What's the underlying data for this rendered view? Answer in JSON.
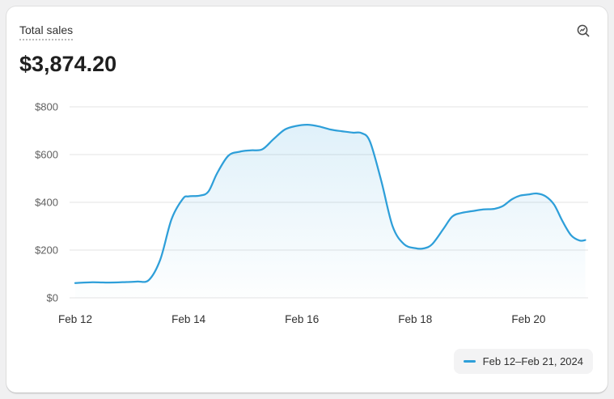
{
  "card": {
    "title": "Total sales",
    "value": "$3,874.20",
    "action_icon": "view-report-magnifier-icon"
  },
  "chart_data": {
    "type": "line",
    "title": "Total sales",
    "x_unit": "day of February 2024",
    "xlim": [
      11.9,
      21.05
    ],
    "ylim": [
      0,
      800
    ],
    "grid": true,
    "area_fill": true,
    "legend_position": "bottom-right",
    "x_ticks": [
      {
        "value": 12,
        "label": "Feb 12"
      },
      {
        "value": 14,
        "label": "Feb 14"
      },
      {
        "value": 16,
        "label": "Feb 16"
      },
      {
        "value": 18,
        "label": "Feb 18"
      },
      {
        "value": 20,
        "label": "Feb 20"
      }
    ],
    "y_ticks": [
      {
        "value": 0,
        "label": "$0"
      },
      {
        "value": 200,
        "label": "$200"
      },
      {
        "value": 400,
        "label": "$400"
      },
      {
        "value": 600,
        "label": "$600"
      },
      {
        "value": 800,
        "label": "$800"
      }
    ],
    "x": [
      12.0,
      12.3,
      12.6,
      12.9,
      13.1,
      13.3,
      13.5,
      13.7,
      13.9,
      14.0,
      14.2,
      14.35,
      14.5,
      14.7,
      14.9,
      15.1,
      15.3,
      15.5,
      15.7,
      15.9,
      16.1,
      16.3,
      16.5,
      16.7,
      16.9,
      17.05,
      17.2,
      17.4,
      17.6,
      17.8,
      18.0,
      18.15,
      18.3,
      18.5,
      18.65,
      18.8,
      19.0,
      19.2,
      19.4,
      19.55,
      19.7,
      19.85,
      20.0,
      20.15,
      20.3,
      20.45,
      20.6,
      20.75,
      20.9,
      21.0
    ],
    "series": [
      {
        "name": "Feb 12–Feb 21, 2024",
        "color": "#2e9fd9",
        "values": [
          62,
          65,
          64,
          66,
          68,
          75,
          160,
          330,
          415,
          425,
          428,
          445,
          520,
          595,
          612,
          618,
          622,
          665,
          705,
          720,
          725,
          718,
          705,
          698,
          692,
          690,
          655,
          490,
          300,
          225,
          208,
          207,
          225,
          290,
          340,
          355,
          363,
          370,
          373,
          385,
          412,
          428,
          433,
          437,
          425,
          390,
          320,
          262,
          240,
          242
        ]
      }
    ]
  }
}
